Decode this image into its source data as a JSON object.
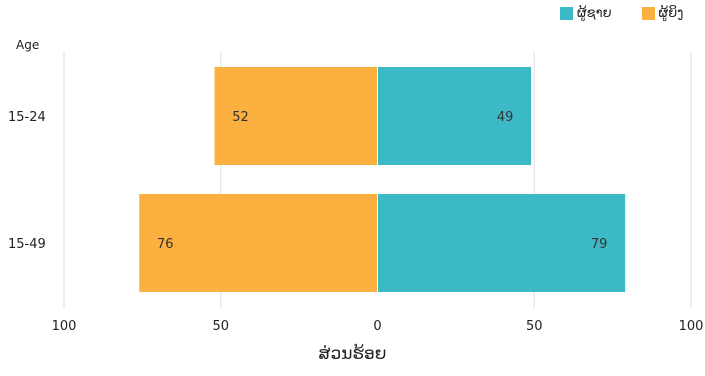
{
  "chart_data": {
    "type": "bar",
    "orientation": "horizontal-diverging",
    "categories": [
      "15-24",
      "15-49"
    ],
    "series": [
      {
        "name": "ຜູ້ຊາຍ",
        "values": [
          49,
          79
        ],
        "color": "#3bbac6",
        "side": "right"
      },
      {
        "name": "ຜູ້ຍິງ",
        "values": [
          52,
          76
        ],
        "color": "#fbb040",
        "side": "left"
      }
    ],
    "ylabel": "Age",
    "xlabel": "ສ່ວນຮ້ອຍ",
    "xlim": [
      -100,
      100
    ],
    "xticks": [
      -100,
      -50,
      0,
      50,
      100
    ],
    "xtick_labels": [
      "100",
      "50",
      "0",
      "50",
      "100"
    ],
    "grid": true,
    "legend_position": "top-right"
  }
}
